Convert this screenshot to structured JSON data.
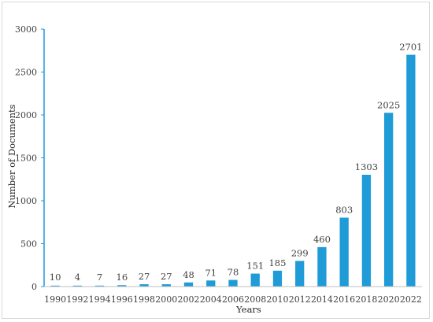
{
  "chart_data": {
    "type": "bar",
    "title": "",
    "xlabel": "Years",
    "ylabel": "Number of Documents",
    "categories": [
      "1990",
      "1992",
      "1994",
      "1996",
      "1998",
      "2000",
      "2002",
      "2004",
      "2006",
      "2008",
      "2010",
      "2012",
      "2014",
      "2016",
      "2018",
      "2020",
      "2022"
    ],
    "values": [
      10,
      4,
      7,
      16,
      27,
      27,
      48,
      71,
      78,
      151,
      185,
      299,
      460,
      803,
      1303,
      2025,
      2701
    ],
    "ylim": [
      0,
      3000
    ],
    "yticks": [
      0,
      500,
      1000,
      1500,
      2000,
      2500,
      3000
    ],
    "grid": false,
    "legend": "none",
    "bar_color": "#1f9bd7"
  }
}
